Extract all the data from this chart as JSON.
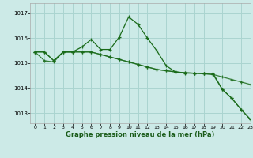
{
  "title": "Graphe pression niveau de la mer (hPa)",
  "bg_color": "#cceae7",
  "grid_color": "#aad4d0",
  "line_color": "#1a6b1a",
  "xlim": [
    -0.5,
    23
  ],
  "ylim": [
    1012.6,
    1017.4
  ],
  "yticks": [
    1013,
    1014,
    1015,
    1016,
    1017
  ],
  "xticks": [
    0,
    1,
    2,
    3,
    4,
    5,
    6,
    7,
    8,
    9,
    10,
    11,
    12,
    13,
    14,
    15,
    16,
    17,
    18,
    19,
    20,
    21,
    22,
    23
  ],
  "series1": [
    1015.45,
    1015.45,
    1015.1,
    1015.45,
    1015.45,
    1015.65,
    1015.95,
    1015.55,
    1015.55,
    1016.05,
    1016.85,
    1016.55,
    1016.0,
    1015.5,
    1014.9,
    1014.65,
    1014.6,
    1014.6,
    1014.6,
    1014.6,
    1013.95,
    1013.6,
    1013.15,
    1012.75
  ],
  "series2": [
    1015.45,
    1015.45,
    1015.1,
    1015.45,
    1015.45,
    1015.45,
    1015.45,
    1015.35,
    1015.25,
    1015.15,
    1015.05,
    1014.95,
    1014.85,
    1014.75,
    1014.7,
    1014.65,
    1014.62,
    1014.6,
    1014.58,
    1014.55,
    1014.45,
    1014.35,
    1014.25,
    1014.15
  ],
  "series3": [
    1015.45,
    1015.1,
    1015.05,
    1015.45,
    1015.45,
    1015.45,
    1015.45,
    1015.35,
    1015.25,
    1015.15,
    1015.05,
    1014.95,
    1014.85,
    1014.75,
    1014.7,
    1014.65,
    1014.62,
    1014.6,
    1014.58,
    1014.55,
    1013.95,
    1013.6,
    1013.15,
    1012.75
  ]
}
